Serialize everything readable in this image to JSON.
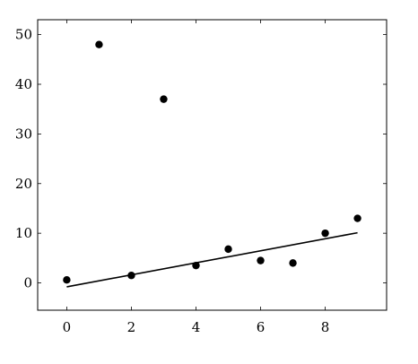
{
  "chart_data": {
    "type": "scatter",
    "title": "",
    "xlabel": "",
    "ylabel": "",
    "xlim": [
      -0.9,
      9.9
    ],
    "ylim": [
      -5.5,
      53
    ],
    "xticks": [
      0,
      2,
      4,
      6,
      8
    ],
    "yticks": [
      0,
      10,
      20,
      30,
      40,
      50
    ],
    "grid": false,
    "points": {
      "x": [
        0,
        1,
        2,
        3,
        4,
        5,
        6,
        7,
        8,
        9
      ],
      "y": [
        0.6,
        48,
        1.5,
        37,
        3.5,
        6.8,
        4.5,
        4,
        10,
        13
      ]
    },
    "fit_line": {
      "x": [
        0,
        9
      ],
      "y": [
        -0.8,
        10.1
      ]
    },
    "colors": {
      "points": "#000000",
      "line": "#000000"
    }
  }
}
